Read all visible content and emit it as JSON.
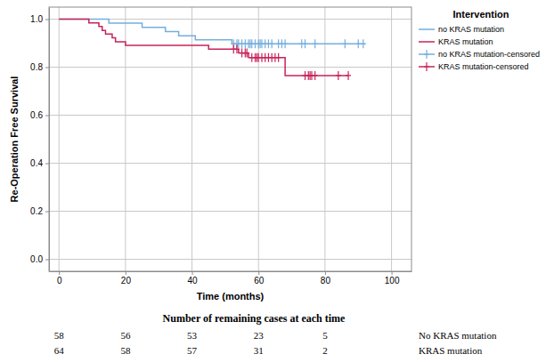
{
  "chart_data": {
    "type": "line",
    "xlabel": "Time (months)",
    "ylabel": "Re-Operation Free Survival",
    "xlim": [
      -3,
      106
    ],
    "ylim": [
      -0.05,
      1.05
    ],
    "xticks": [
      0,
      20,
      40,
      60,
      80,
      100
    ],
    "yticks": [
      {
        "value": 0,
        "label": "0.0"
      },
      0.2,
      0.4,
      0.6,
      0.8,
      {
        "value": 1,
        "label": "1.0"
      }
    ],
    "grid": true,
    "legend": "right",
    "legend_title": "Intervention",
    "series": [
      {
        "name": "no KRAS mutation",
        "color": "#74aede",
        "type": "line",
        "line_style": "step",
        "x": [
          0,
          15,
          25,
          32,
          36,
          41,
          52,
          92
        ],
        "values": [
          1,
          0.983,
          0.966,
          0.948,
          0.931,
          0.914,
          0.897,
          0.897
        ]
      },
      {
        "name": "KRAS mutation",
        "color": "#c8235a",
        "type": "line",
        "line_style": "step",
        "x": [
          0,
          9,
          12,
          13,
          14,
          16,
          17,
          20,
          45,
          54,
          57,
          68,
          87
        ],
        "values": [
          1,
          0.984,
          0.969,
          0.953,
          0.938,
          0.922,
          0.906,
          0.891,
          0.875,
          0.859,
          0.84,
          0.765,
          0.765
        ]
      },
      {
        "name": "no KRAS mutation-censored",
        "color": "#74aede",
        "type": "scatter",
        "marker": "plus",
        "x": [
          52.5,
          53.5,
          54,
          55,
          56,
          57,
          57.5,
          58,
          59,
          60,
          60.5,
          61,
          62,
          63,
          64,
          66,
          67,
          68,
          73,
          74,
          77,
          86,
          90,
          91.5
        ],
        "values": [
          0.897,
          0.897,
          0.897,
          0.897,
          0.897,
          0.897,
          0.897,
          0.897,
          0.897,
          0.897,
          0.897,
          0.897,
          0.897,
          0.897,
          0.897,
          0.897,
          0.897,
          0.897,
          0.897,
          0.897,
          0.897,
          0.897,
          0.897,
          0.897
        ]
      },
      {
        "name": "KRAS mutation-censored",
        "color": "#c8235a",
        "type": "scatter",
        "marker": "plus",
        "x": [
          52.5,
          53.5,
          55,
          56,
          56.5,
          58,
          59,
          59.5,
          60,
          61,
          62,
          63,
          64,
          65,
          66,
          74,
          75,
          75.5,
          76,
          77,
          84,
          87
        ],
        "values": [
          0.875,
          0.875,
          0.859,
          0.859,
          0.859,
          0.84,
          0.84,
          0.84,
          0.84,
          0.84,
          0.84,
          0.84,
          0.84,
          0.84,
          0.84,
          0.765,
          0.765,
          0.765,
          0.765,
          0.765,
          0.765,
          0.765
        ]
      }
    ],
    "risk_table": {
      "title": "Number of remaining cases at each time",
      "rows": [
        {
          "label": "No KRAS mutation",
          "counts": [
            58,
            56,
            53,
            23,
            5
          ]
        },
        {
          "label": "KRAS mutation",
          "counts": [
            64,
            58,
            57,
            31,
            2
          ]
        }
      ]
    }
  }
}
